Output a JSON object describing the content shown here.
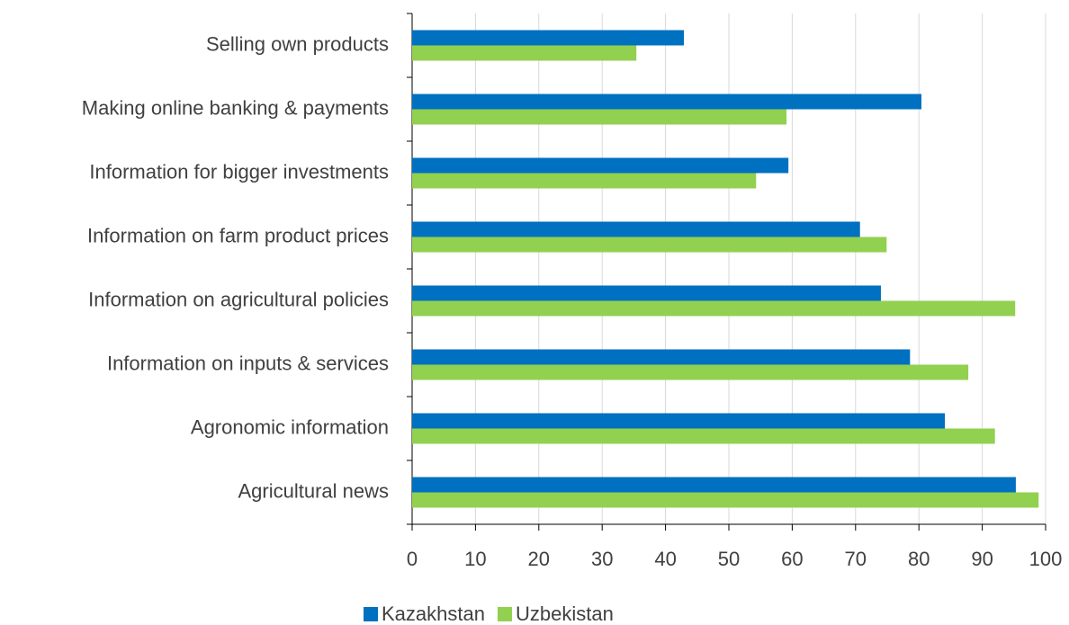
{
  "chart_data": {
    "type": "barh",
    "categories": [
      "Selling own products",
      "Making online banking & payments",
      "Information for bigger investments",
      "Information on farm product prices",
      "Information on agricultural policies",
      "Information on inputs & services",
      "Agronomic information",
      "Agricultural news"
    ],
    "series": [
      {
        "name": "Kazakhstan",
        "color": "#0070c0",
        "values": [
          42.9,
          80.4,
          59.4,
          70.7,
          74,
          78.6,
          84.1,
          95.3
        ]
      },
      {
        "name": "Uzbekistan",
        "color": "#92d050",
        "values": [
          35.4,
          59.1,
          54.3,
          74.9,
          95.2,
          87.8,
          92,
          98.9
        ]
      }
    ],
    "xlim": [
      0,
      100
    ],
    "xticks": [
      0,
      10,
      20,
      30,
      40,
      50,
      60,
      70,
      80,
      90,
      100
    ],
    "grid": true,
    "legend": "bottom"
  }
}
